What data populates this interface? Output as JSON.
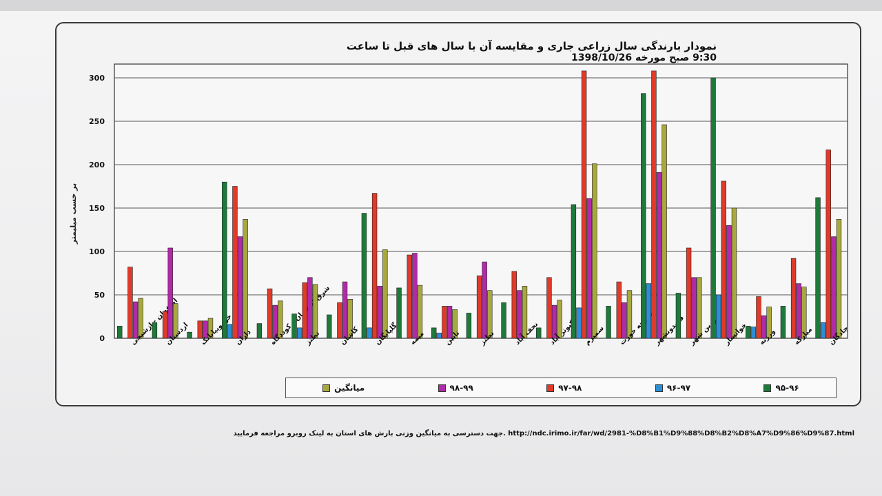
{
  "chart_data": {
    "type": "bar",
    "title": "نمودار بارندگی سال زراعی جاری و مقایسه آن با سال های قبل تا ساعت 9:30 صبح مورخه 1398/10/26",
    "title_line1": "نمودار بارندگی سال زراعی جاری و مقایسه آن با سال های قبل تا ساعت",
    "title_line2": "9:30 صبح مورخه 1398/10/26",
    "ylabel": "بر حسب میلیمتر",
    "ylim": [
      0,
      300
    ],
    "yticks": [
      {
        "value": 0,
        "label": "0"
      },
      {
        "value": 50,
        "label": "50"
      },
      {
        "value": 100,
        "label": "100"
      },
      {
        "value": 150,
        "label": "150"
      },
      {
        "value": 200,
        "label": "200"
      },
      {
        "value": 250,
        "label": "250"
      },
      {
        "value": 300,
        "label": "300"
      }
    ],
    "grid": true,
    "legend_position": "bottom",
    "categories": [
      "اصفهان - ازشیجی",
      "اردستان",
      "خوروبیابانک",
      "داران",
      "شرق اصفهان - کوددگاه",
      "نطنز",
      "کاشان",
      "گلپایگان",
      "میمه",
      "نایین",
      "نطنز",
      "نجف آباد",
      "کبوتر آباد",
      "سمیرم",
      "مورچه خورت",
      "فریدونشهر",
      "زرین شهر",
      "خوانسار",
      "ورزنه",
      "مبارکه",
      "چادگان"
    ],
    "series": [
      {
        "name": "۹۵-۹۶",
        "color": "#1e7a3a",
        "values": [
          14,
          18,
          7,
          180,
          17,
          28,
          27,
          144,
          58,
          12,
          29,
          41,
          12,
          154,
          37,
          282,
          52,
          300,
          14,
          37,
          162
        ]
      },
      {
        "name": "۹۶-۹۷",
        "color": "#2b8fd6",
        "values": [
          0,
          0,
          0,
          16,
          0,
          12,
          0,
          12,
          0,
          6,
          0,
          0,
          0,
          35,
          0,
          63,
          0,
          50,
          13,
          0,
          18
        ]
      },
      {
        "name": "۹۷-۹۸",
        "color": "#e03a2a",
        "values": [
          82,
          31,
          20,
          175,
          57,
          64,
          41,
          167,
          96,
          37,
          72,
          77,
          70,
          308,
          65,
          315,
          104,
          181,
          48,
          92,
          217
        ]
      },
      {
        "name": "۹۸-۹۹",
        "color": "#b12aa8",
        "values": [
          42,
          104,
          20,
          117,
          38,
          70,
          65,
          60,
          98,
          37,
          88,
          55,
          38,
          161,
          41,
          191,
          70,
          130,
          26,
          63,
          117
        ]
      },
      {
        "name": "میانگین",
        "color": "#a9a83e",
        "values": [
          46,
          40,
          23,
          137,
          43,
          62,
          45,
          102,
          61,
          33,
          55,
          60,
          44,
          201,
          55,
          246,
          70,
          150,
          36,
          59,
          137
        ]
      }
    ]
  },
  "footnote": "جهت دسترسی به میانگین وزنی بارش های استان به لینک روبرو مراجعه فرمایید. http://ndc.irimo.ir/far/wd/2981-%D8%B1%D9%88%D8%B2%D8%A7%D9%86%D9%87.html"
}
